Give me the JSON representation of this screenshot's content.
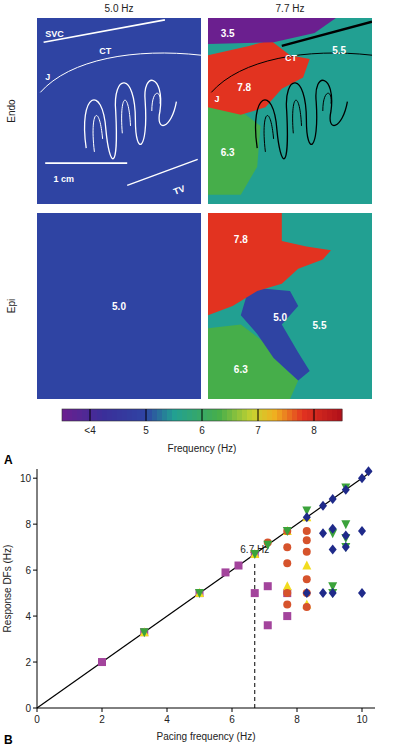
{
  "chart_data": [
    {
      "type": "map",
      "panel": "A",
      "columns": [
        "5.0 Hz",
        "7.7 Hz"
      ],
      "rows": [
        "Endo",
        "Epi"
      ],
      "maps": [
        [
          {
            "annotations": [
              "SVC",
              "CT",
              "J",
              "1 cm",
              "TV"
            ],
            "regions": [
              {
                "value": 5.0
              }
            ]
          },
          {
            "annotations": [
              "CT",
              "J"
            ],
            "regions": [
              {
                "value": 5.5,
                "label": "5.5"
              },
              {
                "value": 6.3,
                "label": "6.3"
              },
              {
                "value": 7.8,
                "label": "7.8"
              },
              {
                "value": 3.5,
                "label": "3.5"
              }
            ]
          }
        ],
        [
          {
            "regions": [
              {
                "value": 5.0,
                "label": "5.0"
              }
            ]
          },
          {
            "regions": [
              {
                "value": 5.5,
                "label": "5.5"
              },
              {
                "value": 6.3,
                "label": "6.3"
              },
              {
                "value": 5.0,
                "label": "5.0"
              },
              {
                "value": 7.8,
                "label": "7.8"
              }
            ]
          }
        ]
      ],
      "colorbar": {
        "label": "Frequency (Hz)",
        "range": [
          3.5,
          8.5
        ],
        "ticks": [
          {
            "value": 4,
            "label": "<4"
          },
          5,
          6,
          7,
          8
        ]
      }
    },
    {
      "type": "scatter",
      "panel": "B",
      "xlabel": "Pacing frequency (Hz)",
      "ylabel": "Response DFs (Hz)",
      "xlim": [
        0,
        10.4
      ],
      "ylim": [
        0,
        10.4
      ],
      "xticks": [
        0,
        2,
        4,
        6,
        8,
        10
      ],
      "yticks": [
        0,
        2,
        4,
        6,
        8,
        10
      ],
      "annotations": [
        {
          "x": 6.7,
          "label": "6.7 Hz",
          "line_style": "dashed"
        }
      ],
      "series": [
        {
          "type": "line",
          "color": "#000000",
          "x": [
            0,
            10.3
          ],
          "values": [
            0,
            10.3
          ]
        },
        {
          "marker": "square",
          "color": "#a3449c",
          "x": [
            2,
            3.3,
            5,
            5.8,
            6.2,
            6.7,
            6.7,
            7.1,
            7.1,
            7.7,
            7.7
          ],
          "values": [
            2,
            3.3,
            5,
            5.9,
            6.2,
            6.7,
            5.0,
            5.3,
            3.6,
            5.0,
            4.0
          ]
        },
        {
          "marker": "triangle-up",
          "color": "#f2dc1e",
          "x": [
            3.3,
            5,
            6.7,
            7.7,
            7.7,
            8.3,
            8.3,
            8.3
          ],
          "values": [
            3.3,
            5,
            6.7,
            7.7,
            5.3,
            8.3,
            6.2,
            4.5
          ]
        },
        {
          "marker": "circle",
          "color": "#d6532c",
          "x": [
            7.1,
            7.7,
            7.7,
            7.7,
            7.7,
            7.7,
            8.3,
            8.3,
            8.3,
            8.3,
            8.3,
            8.3
          ],
          "values": [
            7.2,
            7.7,
            7.0,
            6.3,
            5.0,
            4.5,
            7.7,
            7.3,
            6.8,
            5.6,
            5.0,
            4.4
          ]
        },
        {
          "marker": "triangle-down",
          "color": "#3ba33b",
          "x": [
            3.3,
            5,
            6.7,
            7.1,
            7.7,
            8.3,
            9.1,
            9.1,
            9.1,
            9.5,
            9.5,
            9.5,
            9.5
          ],
          "values": [
            3.3,
            5,
            6.7,
            7.1,
            7.7,
            8.6,
            7.6,
            5.3,
            5.0,
            9.6,
            8.0,
            7.4,
            7.0
          ]
        },
        {
          "marker": "diamond",
          "color": "#1f2a8a",
          "x": [
            8.3,
            8.8,
            9.1,
            9.5,
            10,
            10.2,
            8.8,
            9.1,
            9.1,
            9.5,
            10,
            8.3,
            9.1,
            10,
            8.8,
            9.5
          ],
          "values": [
            8.3,
            8.8,
            9.1,
            9.5,
            10,
            10.3,
            7.6,
            7.8,
            6.9,
            7.0,
            7.7,
            5.0,
            5.0,
            5.0,
            5.0,
            7.5
          ]
        }
      ]
    }
  ]
}
